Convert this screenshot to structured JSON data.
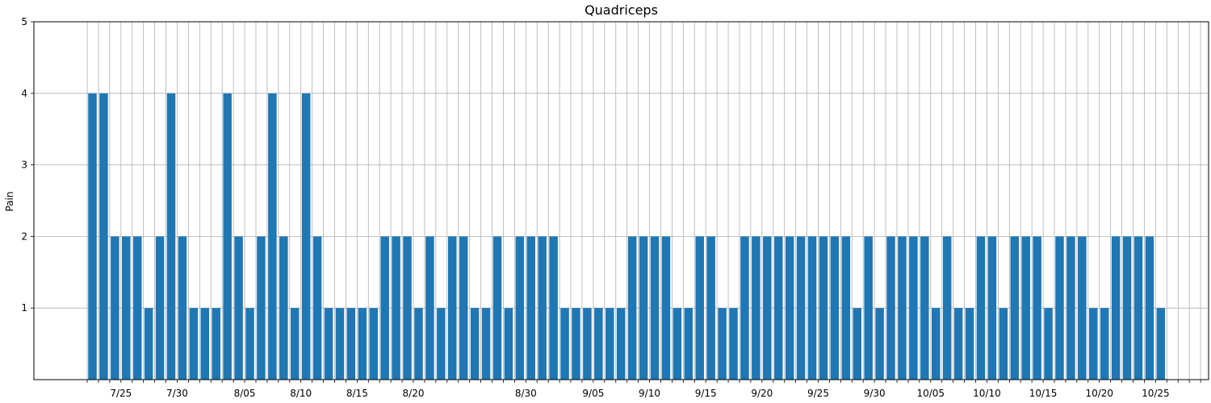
{
  "chart_data": {
    "type": "bar",
    "title": "Quadriceps",
    "xlabel": "",
    "ylabel": "Pain",
    "ylim": [
      0,
      5
    ],
    "yticks": [
      1,
      2,
      3,
      4,
      5
    ],
    "grid": true,
    "bar_color": "#1f77b4",
    "x_start": "2023-07-22",
    "x_end": "2023-10-31",
    "x_ticks": [
      "2023-07-25",
      "2023-07-30",
      "2023-08-05",
      "2023-08-10",
      "2023-08-15",
      "2023-08-20",
      "2023-08-30",
      "2023-09-05",
      "2023-09-10",
      "2023-09-15",
      "2023-09-20",
      "2023-09-25",
      "2023-09-30",
      "2023-10-05",
      "2023-10-10",
      "2023-10-15",
      "2023-10-20",
      "2023-10-25"
    ],
    "x_tick_labels": [
      "7/25",
      "7/30",
      "8/05",
      "8/10",
      "8/15",
      "8/20",
      "8/30",
      "9/05",
      "9/10",
      "9/15",
      "9/20",
      "9/25",
      "9/30",
      "10/05",
      "10/10",
      "10/15",
      "10/20",
      "10/25"
    ],
    "values": [
      4,
      4,
      2,
      2,
      2,
      1,
      2,
      4,
      2,
      1,
      1,
      1,
      4,
      2,
      1,
      2,
      4,
      2,
      1,
      4,
      2,
      1,
      1,
      1,
      1,
      1,
      2,
      2,
      2,
      1,
      2,
      1,
      2,
      2,
      1,
      1,
      2,
      1,
      2,
      2,
      2,
      2,
      1,
      1,
      1,
      1,
      1,
      1,
      2,
      2,
      2,
      2,
      1,
      1,
      2,
      2,
      1,
      1,
      2,
      2,
      2,
      2,
      2,
      2,
      2,
      2,
      2,
      2,
      1,
      2,
      1,
      2,
      2,
      2,
      2,
      1,
      2,
      1,
      1,
      2,
      2,
      1,
      2,
      2,
      2,
      1,
      2,
      2,
      2,
      1,
      1,
      2,
      2,
      2,
      2,
      1
    ]
  }
}
